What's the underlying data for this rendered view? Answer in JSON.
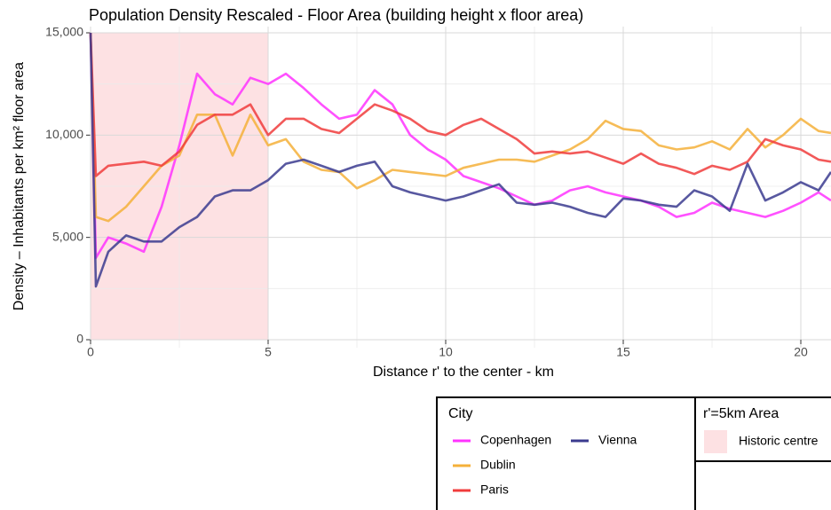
{
  "chart_data": {
    "type": "line",
    "title": "Population Density Rescaled - Floor Area (building height x floor area)",
    "x_label": "Distance r' to the center - km",
    "y_label": "Density – Inhabitants per km² floor area",
    "x": [
      0,
      0.15,
      0.5,
      1,
      1.5,
      2,
      2.5,
      3,
      3.5,
      4,
      4.5,
      5,
      5.5,
      6,
      6.5,
      7,
      7.5,
      8,
      8.5,
      9,
      9.5,
      10,
      10.5,
      11,
      11.5,
      12,
      12.5,
      13,
      13.5,
      14,
      14.5,
      15,
      15.5,
      16,
      16.5,
      17,
      17.5,
      18,
      18.5,
      19,
      19.5,
      20,
      20.5,
      20.85
    ],
    "xlim": [
      0,
      20.85
    ],
    "xticks": [
      0,
      5,
      10,
      15,
      20
    ],
    "ylim": [
      0,
      15000
    ],
    "yticks": [
      0,
      {
        "value": 5000,
        "label": "5,000"
      },
      {
        "value": 10000,
        "label": "10,000"
      },
      {
        "value": 15000,
        "label": "15,000"
      }
    ],
    "grid": true,
    "legend_title": "City",
    "series": [
      {
        "name": "Copenhagen",
        "color": "#ff33ff",
        "values": [
          15000,
          4000,
          5000,
          4700,
          4300,
          6500,
          9500,
          13000,
          12000,
          11500,
          12800,
          12500,
          13000,
          12300,
          11500,
          10800,
          11000,
          12200,
          11500,
          10000,
          9300,
          8800,
          8000,
          7700,
          7400,
          7000,
          6600,
          6800,
          7300,
          7500,
          7200,
          7000,
          6800,
          6500,
          6000,
          6200,
          6700,
          6400,
          6200,
          6000,
          6300,
          6700,
          7200,
          6800
        ]
      },
      {
        "name": "Dublin",
        "color": "#f5b03a",
        "values": [
          15000,
          6000,
          5800,
          6500,
          7500,
          8500,
          9000,
          11000,
          11000,
          9000,
          11000,
          9500,
          9800,
          8700,
          8300,
          8200,
          7400,
          7800,
          8300,
          8200,
          8100,
          8000,
          8400,
          8600,
          8800,
          8800,
          8700,
          9000,
          9300,
          9800,
          10700,
          10300,
          10200,
          9500,
          9300,
          9400,
          9700,
          9300,
          10300,
          9400,
          10000,
          10800,
          10200,
          10100
        ]
      },
      {
        "name": "Paris",
        "color": "#f03c3c",
        "values": [
          15000,
          8000,
          8500,
          8600,
          8700,
          8500,
          9200,
          10500,
          11000,
          11000,
          11500,
          10000,
          10800,
          10800,
          10300,
          10100,
          10800,
          11500,
          11200,
          10800,
          10200,
          10000,
          10500,
          10800,
          10300,
          9800,
          9100,
          9200,
          9100,
          9200,
          8900,
          8600,
          9100,
          8600,
          8400,
          8100,
          8500,
          8300,
          8700,
          9800,
          9500,
          9300,
          8800,
          8700
        ]
      },
      {
        "name": "Vienna",
        "color": "#3b3b8f",
        "values": [
          15000,
          2600,
          4300,
          5100,
          4800,
          4800,
          5500,
          6000,
          7000,
          7300,
          7300,
          7800,
          8600,
          8800,
          8500,
          8200,
          8500,
          8700,
          7500,
          7200,
          7000,
          6800,
          7000,
          7300,
          7600,
          6700,
          6600,
          6700,
          6500,
          6200,
          6000,
          6900,
          6800,
          6600,
          6500,
          7300,
          7000,
          6300,
          8600,
          6800,
          7200,
          7700,
          7300,
          8200
        ]
      }
    ],
    "area": {
      "title": "r'=5km Area",
      "name": "Historic centre",
      "xmin": 0,
      "xmax": 5,
      "color": "#fde1e3"
    }
  }
}
